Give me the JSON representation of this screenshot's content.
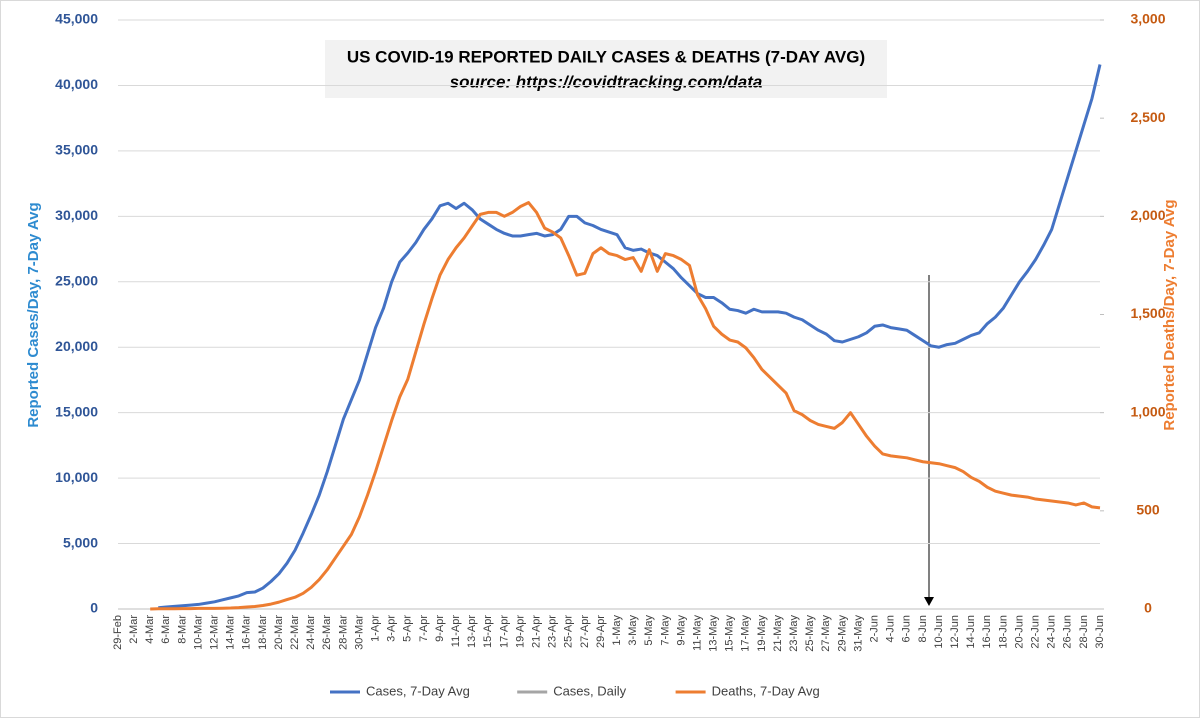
{
  "chart_data": {
    "type": "line",
    "title": "US COVID-19 REPORTED DAILY CASES & DEATHS (7-DAY AVG)",
    "subtitle": "source: https://covidtracking.com/data",
    "ylabel": "Reported Cases/Day, 7-Day Avg",
    "y2label": "Reported Deaths/Day, 7-Day Avg",
    "categories": [
      "29-Feb",
      null,
      "2-Mar",
      null,
      "4-Mar",
      null,
      "6-Mar",
      null,
      "8-Mar",
      null,
      "10-Mar",
      null,
      "12-Mar",
      null,
      "14-Mar",
      null,
      "16-Mar",
      null,
      "18-Mar",
      null,
      "20-Mar",
      null,
      "22-Mar",
      null,
      "24-Mar",
      null,
      "26-Mar",
      null,
      "28-Mar",
      null,
      "30-Mar",
      null,
      "1-Apr",
      null,
      "3-Apr",
      null,
      "5-Apr",
      null,
      "7-Apr",
      null,
      "9-Apr",
      null,
      "11-Apr",
      null,
      "13-Apr",
      null,
      "15-Apr",
      null,
      "17-Apr",
      null,
      "19-Apr",
      null,
      "21-Apr",
      null,
      "23-Apr",
      null,
      "25-Apr",
      null,
      "27-Apr",
      null,
      "29-Apr",
      null,
      "1-May",
      null,
      "3-May",
      null,
      "5-May",
      null,
      "7-May",
      null,
      "9-May",
      null,
      "11-May",
      null,
      "13-May",
      null,
      "15-May",
      null,
      "17-May",
      null,
      "19-May",
      null,
      "21-May",
      null,
      "23-May",
      null,
      "25-May",
      null,
      "27-May",
      null,
      "29-May",
      null,
      "31-May",
      null,
      "2-Jun",
      null,
      "4-Jun",
      null,
      "6-Jun",
      null,
      "8-Jun",
      null,
      "10-Jun",
      null,
      "12-Jun",
      null,
      "14-Jun",
      null,
      "16-Jun",
      null,
      "18-Jun",
      null,
      "20-Jun",
      null,
      "22-Jun",
      null,
      "24-Jun",
      null,
      "26-Jun",
      null,
      "28-Jun",
      null,
      "30-Jun"
    ],
    "series": [
      {
        "name": "Cases, 7-Day Avg",
        "color": "#4472c4",
        "axis": "y",
        "values": [
          null,
          null,
          null,
          null,
          null,
          100,
          150,
          200,
          250,
          300,
          350,
          450,
          550,
          700,
          850,
          1000,
          1250,
          1300,
          1600,
          2100,
          2700,
          3500,
          4500,
          5800,
          7200,
          8700,
          10500,
          12500,
          14500,
          16000,
          17500,
          19500,
          21500,
          23000,
          25000,
          26500,
          27200,
          28000,
          29000,
          29800,
          30800,
          31000,
          30600,
          31000,
          30500,
          29800,
          29400,
          29000,
          28700,
          28500,
          28500,
          28600,
          28700,
          28500,
          28600,
          29000,
          30000,
          30000,
          29500,
          29300,
          29000,
          28800,
          28600,
          27600,
          27400,
          27500,
          27200,
          27000,
          26500,
          26000,
          25300,
          24700,
          24100,
          23800,
          23800,
          23400,
          22900,
          22800,
          22600,
          22900,
          22700,
          22700,
          22700,
          22600,
          22300,
          22100,
          21700,
          21300,
          21000,
          20500,
          20400,
          20600,
          20800,
          21100,
          21600,
          21700,
          21500,
          21400,
          21300,
          20900,
          20500,
          20100,
          20000,
          20200,
          20300,
          20600,
          20900,
          21100,
          21800,
          22300,
          23000,
          24000,
          25000,
          25800,
          26700,
          27800,
          29000,
          31000,
          33000,
          35000,
          37000,
          39000,
          41600
        ]
      },
      {
        "name": "Cases, Daily",
        "color": "#a5a5a5",
        "axis": "y",
        "values": [
          null,
          null,
          null,
          null,
          null,
          null,
          null,
          null,
          null,
          null,
          null,
          null,
          null,
          null,
          null,
          null,
          null,
          null,
          null,
          null,
          null,
          null,
          null,
          null,
          null,
          null,
          null,
          null,
          null,
          null,
          null,
          null,
          null,
          null,
          null,
          null,
          null,
          null,
          null,
          null,
          null,
          null,
          null,
          null,
          null,
          null,
          null,
          null,
          null,
          null,
          null,
          null,
          null,
          null,
          null,
          null,
          null,
          null,
          null,
          null,
          null,
          null,
          null,
          null,
          null,
          null,
          null,
          null,
          null,
          null,
          null,
          null,
          null,
          null,
          null,
          null,
          null,
          null,
          null,
          null,
          null,
          null,
          null,
          null,
          null,
          null,
          null,
          null,
          null,
          null,
          null,
          null,
          null,
          null,
          null,
          null,
          null,
          null,
          null,
          null,
          null,
          null,
          null,
          null,
          null,
          null,
          null,
          null,
          null,
          null,
          null,
          null,
          null,
          null,
          null,
          null,
          null,
          null,
          null,
          null,
          null,
          null,
          null
        ]
      },
      {
        "name": "Deaths, 7-Day Avg",
        "color": "#ed7d31",
        "axis": "y2",
        "values": [
          null,
          null,
          null,
          null,
          0,
          1,
          1,
          1,
          2,
          2,
          3,
          3,
          3,
          4,
          5,
          7,
          10,
          13,
          18,
          25,
          35,
          48,
          60,
          80,
          110,
          150,
          200,
          260,
          320,
          380,
          470,
          580,
          700,
          830,
          960,
          1080,
          1170,
          1310,
          1450,
          1580,
          1700,
          1780,
          1840,
          1890,
          1950,
          2010,
          2020,
          2020,
          2000,
          2020,
          2050,
          2070,
          2020,
          1940,
          1920,
          1890,
          1800,
          1700,
          1710,
          1810,
          1840,
          1810,
          1800,
          1780,
          1790,
          1720,
          1830,
          1720,
          1810,
          1800,
          1780,
          1750,
          1600,
          1530,
          1440,
          1400,
          1370,
          1360,
          1330,
          1280,
          1220,
          1180,
          1140,
          1100,
          1010,
          990,
          960,
          940,
          930,
          920,
          950,
          1000,
          940,
          880,
          830,
          790,
          780,
          775,
          770,
          760,
          750,
          745,
          740,
          730,
          720,
          700,
          670,
          650,
          620,
          600,
          590,
          580,
          575,
          570,
          560,
          555,
          550,
          545,
          540,
          530,
          540,
          520,
          515
        ]
      }
    ],
    "ylim": [
      0,
      45000
    ],
    "yticks": [
      0,
      {
        "value": 5000,
        "label": "5,000"
      },
      {
        "value": 10000,
        "label": "10,000"
      },
      {
        "value": 15000,
        "label": "15,000"
      },
      {
        "value": 20000,
        "label": "20,000"
      },
      {
        "value": 25000,
        "label": "25,000"
      },
      {
        "value": 30000,
        "label": "30,000"
      },
      {
        "value": 35000,
        "label": "35,000"
      },
      {
        "value": 40000,
        "label": "40,000"
      },
      {
        "value": 45000,
        "label": "45,000"
      }
    ],
    "y2lim": [
      0,
      3000
    ],
    "y2ticks": [
      0,
      500,
      {
        "value": 1000,
        "label": "1,000"
      },
      {
        "value": 1500,
        "label": "1,500"
      },
      {
        "value": 2000,
        "label": "2,000"
      },
      {
        "value": 2500,
        "label": "2,500"
      },
      {
        "value": 3000,
        "label": "3,000"
      }
    ],
    "grid": true,
    "legend": "bottom"
  }
}
